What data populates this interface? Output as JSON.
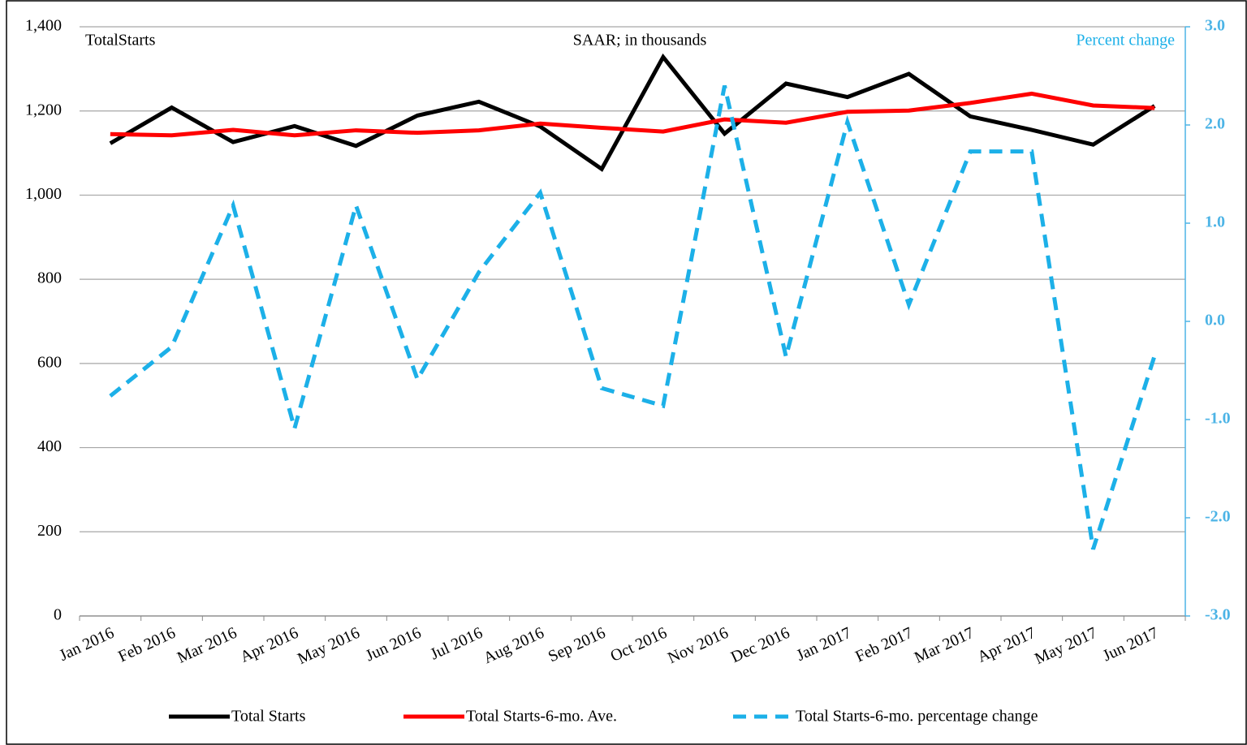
{
  "chart_data": {
    "type": "line",
    "annotations": [
      "TotalStarts",
      "SAAR; in thousands",
      "Percent change"
    ],
    "categories": [
      "Jan 2016",
      "Feb 2016",
      "Mar 2016",
      "Apr 2016",
      "May 2016",
      "Jun 2016",
      "Jul 2016",
      "Aug 2016",
      "Sep 2016",
      "Oct 2016",
      "Nov 2016",
      "Dec 2016",
      "Jan 2017",
      "Feb 2017",
      "Mar 2017",
      "Apr 2017",
      "May 2017",
      "Jun 2017"
    ],
    "series": [
      {
        "name": "Total Starts",
        "color": "#000000",
        "values": [
          1123,
          1208,
          1126,
          1164,
          1117,
          1189,
          1222,
          1163,
          1062,
          1328,
          1146,
          1265,
          1233,
          1288,
          1187,
          1155,
          1120,
          1212
        ]
      },
      {
        "name": "Total Starts-6-mo. Ave.",
        "color": "#ff0000",
        "values": [
          1145,
          1142,
          1155,
          1142,
          1154,
          1148,
          1154,
          1170,
          1160,
          1151,
          1180,
          1172,
          1198,
          1201,
          1219,
          1241,
          1213,
          1207
        ]
      },
      {
        "name": "Total Starts-6-mo. percentage change",
        "color": "#1cb0e8",
        "dashed": true,
        "axis": "y2",
        "values": [
          -0.76,
          -0.26,
          1.18,
          -1.09,
          1.18,
          -0.59,
          0.5,
          1.31,
          -0.68,
          -0.86,
          2.4,
          -0.36,
          2.03,
          0.17,
          1.73,
          1.73,
          -2.32,
          -0.35
        ]
      }
    ],
    "ylim": [
      0,
      1400
    ],
    "yticks": [
      0,
      200,
      400,
      600,
      800,
      {
        "value": 1000,
        "label": "1,000"
      },
      {
        "value": 1200,
        "label": "1,200"
      },
      {
        "value": 1400,
        "label": "1,400"
      }
    ],
    "y2lim": [
      -3,
      3
    ],
    "y2ticks": [
      {
        "value": -3,
        "label": "-3.0"
      },
      {
        "value": -2,
        "label": "-2.0"
      },
      {
        "value": -1,
        "label": "-1.0"
      },
      {
        "value": 0,
        "label": "0.0"
      },
      {
        "value": 1,
        "label": "1.0"
      },
      {
        "value": 2,
        "label": "2.0"
      },
      {
        "value": 3,
        "label": "3.0"
      }
    ],
    "grid": true,
    "legend": "bottom"
  }
}
